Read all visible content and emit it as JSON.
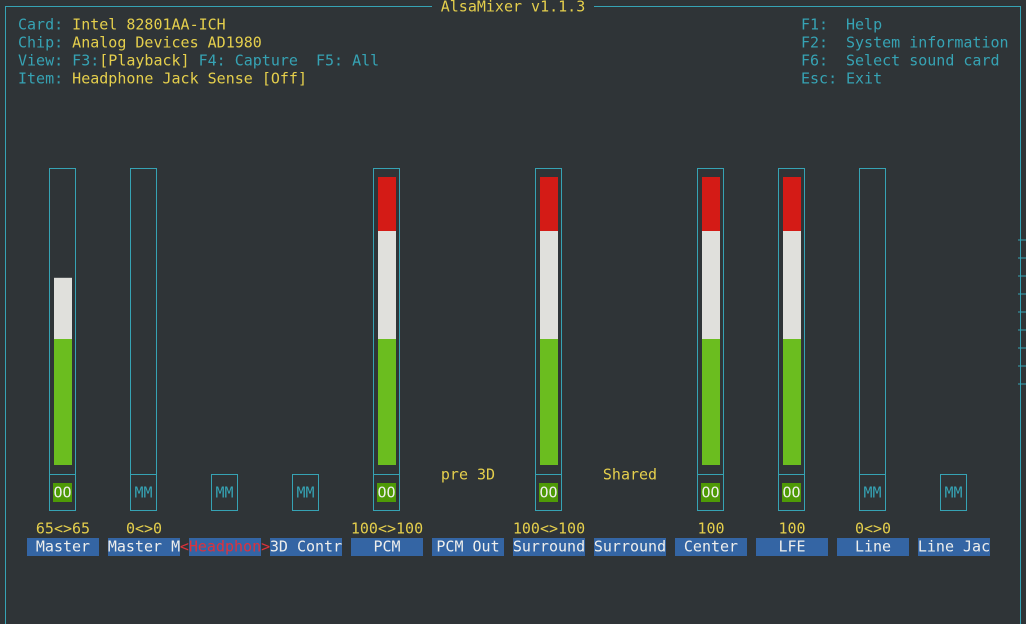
{
  "title": "AlsaMixer v1.1.3",
  "info": [
    {
      "label": "Card:",
      "value": "Intel 82801AA-ICH"
    },
    {
      "label": "Chip:",
      "value": "Analog Devices AD1980"
    },
    {
      "label": "View:",
      "parts": [
        "F3:",
        "[Playback]",
        "F4: Capture",
        "F5: All"
      ]
    },
    {
      "label": "Item:",
      "value": "Headphone Jack Sense [Off]"
    }
  ],
  "keys": [
    {
      "key": "F1:",
      "action": "Help"
    },
    {
      "key": "F2:",
      "action": "System information"
    },
    {
      "key": "F6:",
      "action": "Select sound card"
    },
    {
      "key": "Esc:",
      "action": "Exit"
    }
  ],
  "channels": [
    {
      "name": "Master",
      "value_label": "65<>65",
      "level": 65,
      "switch": "OO"
    },
    {
      "name": "Master M",
      "value_label": "0<>0",
      "level": 0,
      "switch": "MM"
    },
    {
      "name": "<Headphon>",
      "switch": "MM",
      "selected": true
    },
    {
      "name": "3D Contr",
      "switch": "MM"
    },
    {
      "name": "PCM",
      "value_label": "100<>100",
      "level": 100,
      "switch": "OO"
    },
    {
      "name": "PCM Out",
      "note": "pre 3D"
    },
    {
      "name": "Surround",
      "value_label": "100<>100",
      "level": 100,
      "switch": "OO"
    },
    {
      "name": "Surround",
      "note": "Shared"
    },
    {
      "name": "Center",
      "value_label": "100",
      "level": 100,
      "switch": "OO"
    },
    {
      "name": "LFE",
      "value_label": "100",
      "level": 100,
      "switch": "OO"
    },
    {
      "name": "Line",
      "value_label": "0<>0",
      "level": 0,
      "switch": "MM"
    },
    {
      "name": "Line Jac",
      "switch": "MM"
    }
  ]
}
